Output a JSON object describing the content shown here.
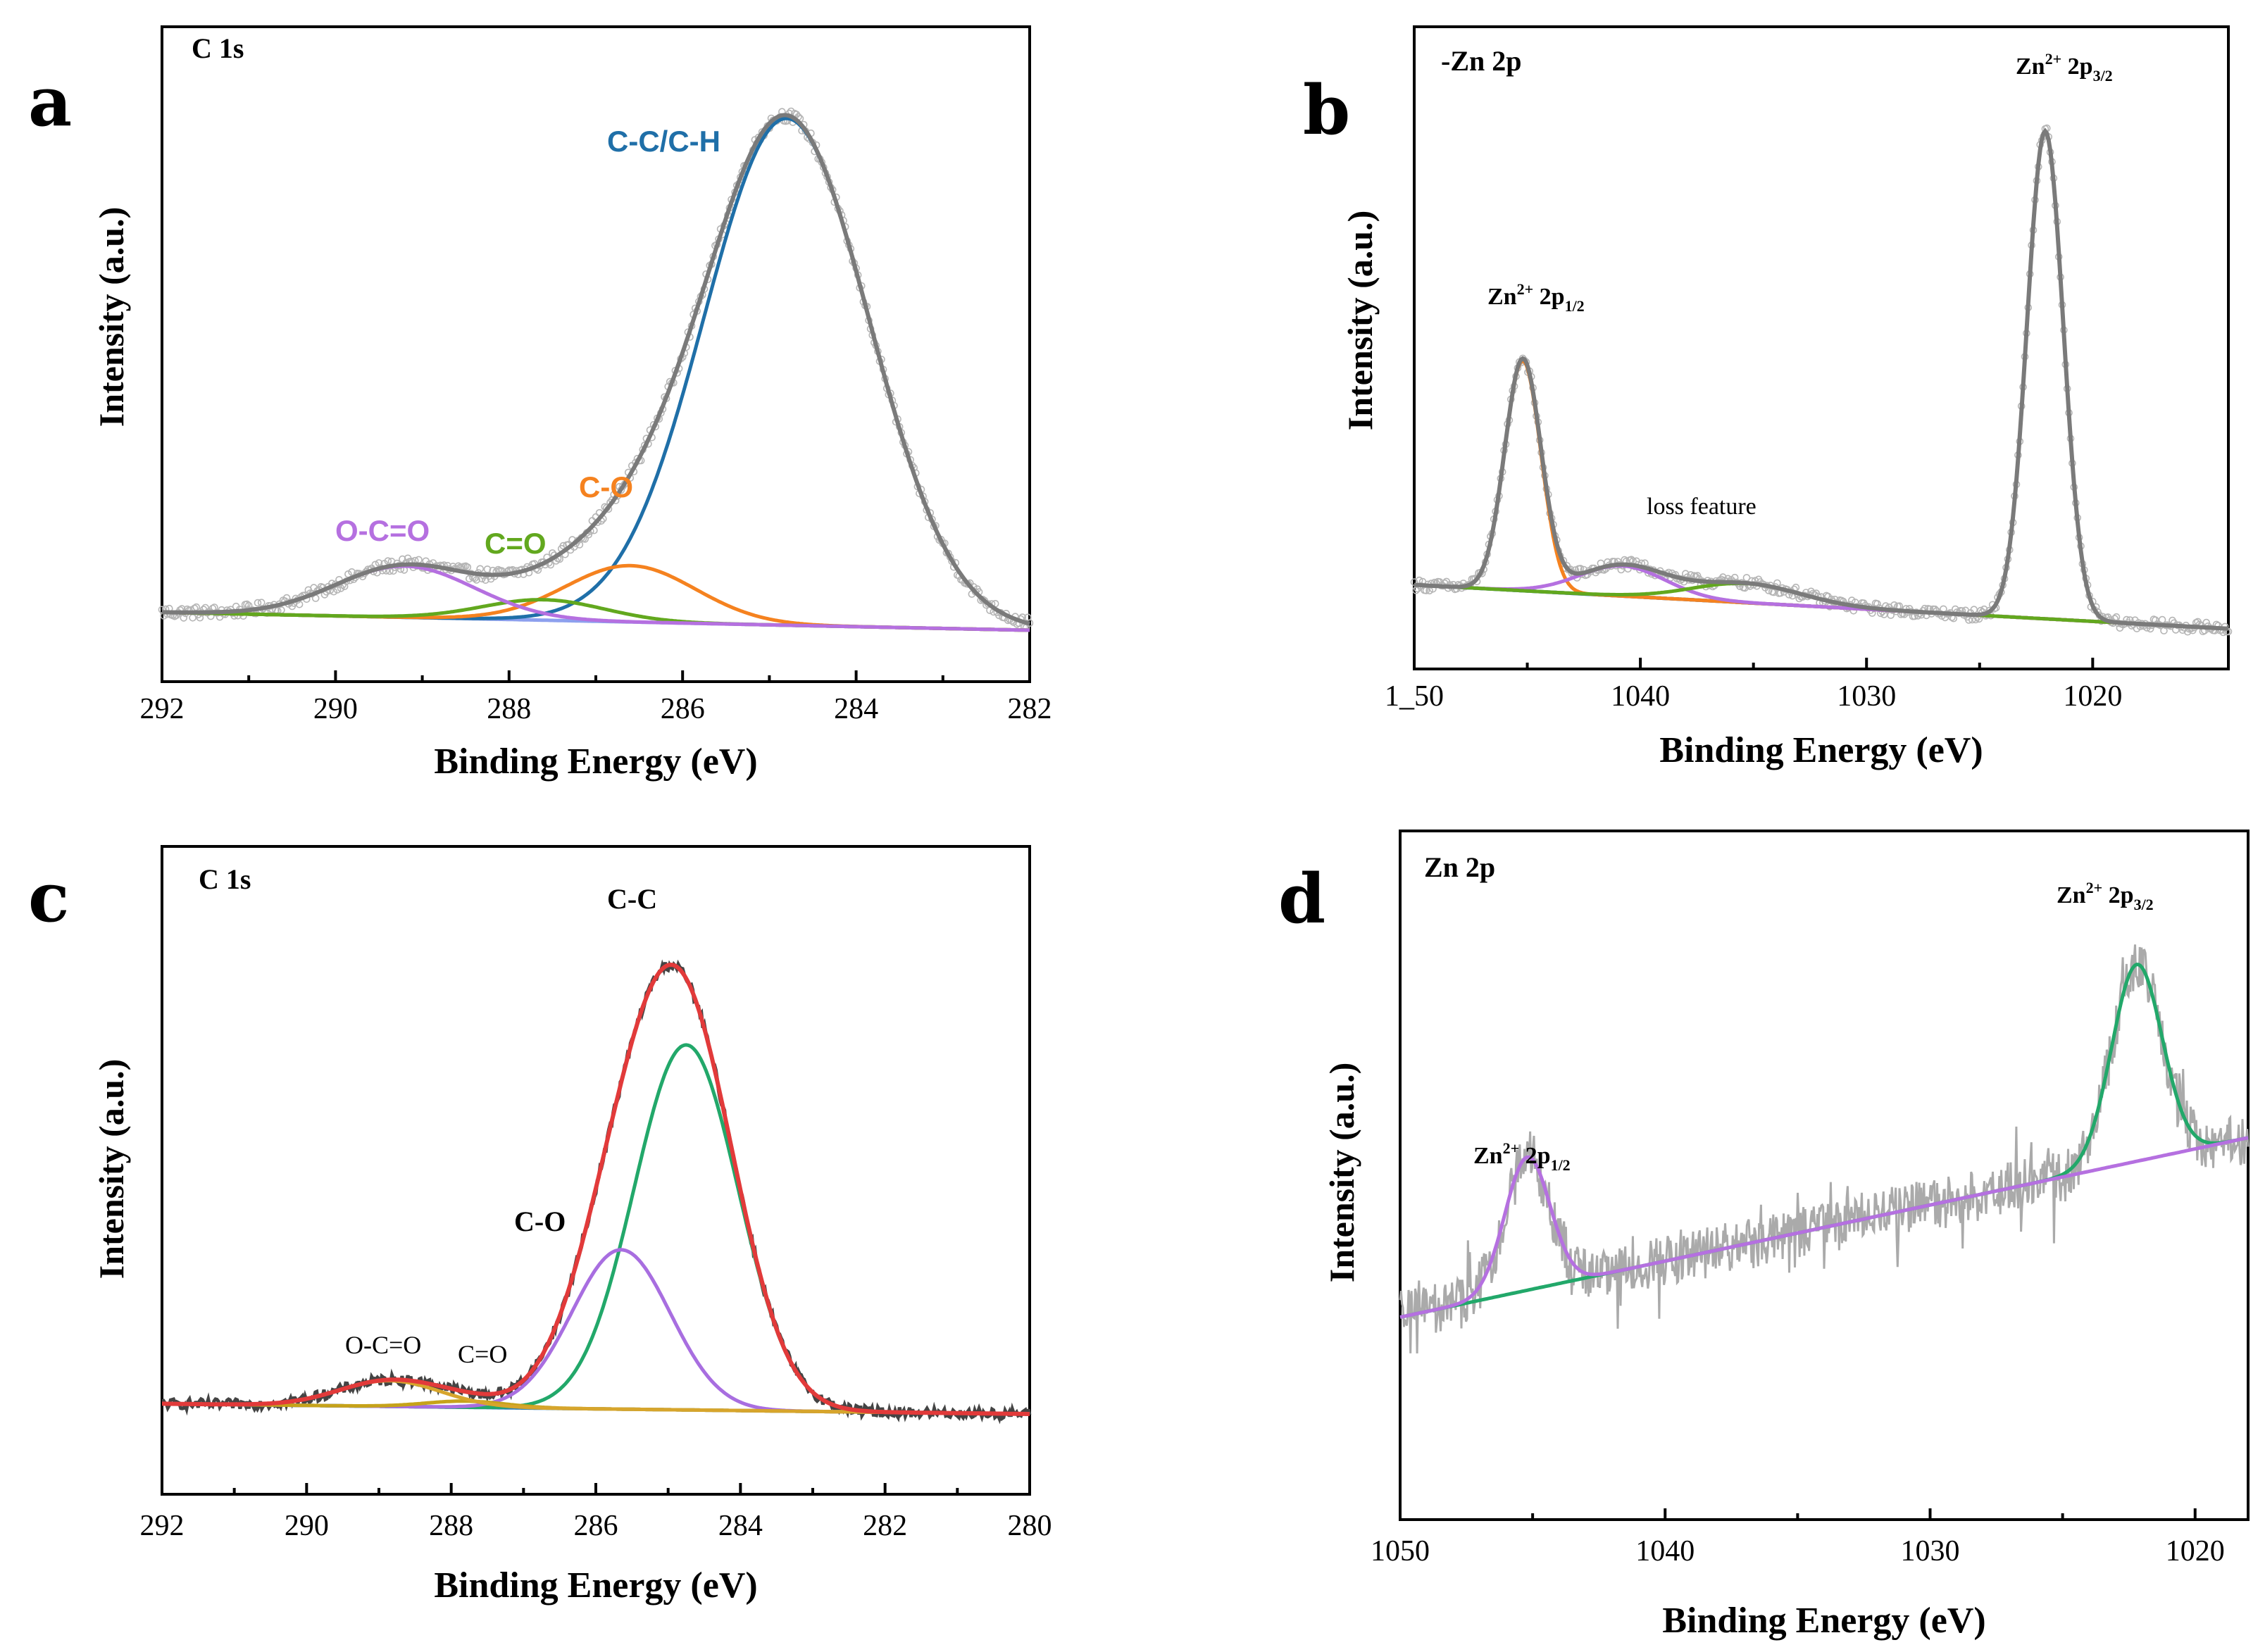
{
  "chart_data": [
    {
      "panel": "a",
      "type": "line",
      "title": "C 1s",
      "xlabel": "Binding Energy (eV)",
      "ylabel": "Intensity (a.u.)",
      "xlim": [
        292,
        282
      ],
      "ylim": [
        0,
        1
      ],
      "xticks": [
        292,
        290,
        288,
        286,
        284,
        282
      ],
      "background": {
        "start": 0.035,
        "end": 0.0
      },
      "raw_noise": 0.012,
      "series": [
        {
          "name": "C-C/C-H",
          "color": "#1f6fa8",
          "center": 284.8,
          "height": 0.99,
          "sigma": 0.95
        },
        {
          "name": "C-O",
          "color": "#f5821f",
          "center": 286.6,
          "height": 0.11,
          "sigma": 0.75
        },
        {
          "name": "C=O",
          "color": "#62a81e",
          "center": 287.6,
          "height": 0.04,
          "sigma": 0.7
        },
        {
          "name": "O-C=O",
          "color": "#b570e0",
          "center": 289.2,
          "height": 0.1,
          "sigma": 0.8
        }
      ],
      "envelope_color": "#7a7a7a",
      "background_color": "#8da0ee",
      "annotations": [
        {
          "text": "C-C/C-H",
          "color": "#1f6fa8"
        },
        {
          "text": "C-O",
          "color": "#f5821f"
        },
        {
          "text": "C=O",
          "color": "#62a81e"
        },
        {
          "text": "O-C=O",
          "color": "#b570e0"
        }
      ]
    },
    {
      "panel": "b",
      "type": "line",
      "title": "-Zn 2p",
      "xlabel": "Binding Energy (eV)",
      "ylabel": "Intensity (a.u.)",
      "xlim": [
        1050,
        1014
      ],
      "ylim": [
        0,
        1
      ],
      "xticks": [
        1050,
        1040,
        1030,
        1020
      ],
      "xtick_labels": [
        "1_50",
        "1040",
        "1030",
        "1020"
      ],
      "background": {
        "start": 0.115,
        "end": 0.035
      },
      "raw_noise": 0.01,
      "series": [
        {
          "name": "Zn2+ 2p3/2",
          "color": "#1f6fa8",
          "center": 1022.1,
          "height": 0.89,
          "sigma": 0.8
        },
        {
          "name": "Zn2+ 2p1/2",
          "color": "#f5821f",
          "center": 1045.2,
          "height": 0.42,
          "sigma": 0.8
        },
        {
          "name": "loss feature 1",
          "color": "#b570e0",
          "center": 1040.8,
          "height": 0.055,
          "sigma": 1.9
        },
        {
          "name": "loss feature 2",
          "color": "#62a81e",
          "center": 1035.3,
          "height": 0.035,
          "sigma": 2.4
        }
      ],
      "envelope_color": "#7a7a7a",
      "background_color": "#8da0ee",
      "annotations": [
        {
          "text": "Zn",
          "sup": "2+",
          "text2": " 2p",
          "sub": "3/2"
        },
        {
          "text": "Zn",
          "sup": "2+",
          "text2": " 2p",
          "sub": "1/2"
        },
        {
          "text": "loss feature"
        }
      ]
    },
    {
      "panel": "c",
      "type": "line",
      "title": "C 1s",
      "xlabel": "Binding Energy (eV)",
      "ylabel": "Intensity (a.u.)",
      "xlim": [
        292,
        280
      ],
      "ylim": [
        0,
        1
      ],
      "xticks": [
        292,
        290,
        288,
        286,
        284,
        282,
        280
      ],
      "background": {
        "start": 0.02,
        "end": 0.0
      },
      "raw_noise": 0.01,
      "series": [
        {
          "name": "C-C",
          "color": "#22a86a",
          "center": 284.75,
          "height": 0.71,
          "sigma": 0.72
        },
        {
          "name": "C-O",
          "color": "#a86ee0",
          "center": 285.65,
          "height": 0.31,
          "sigma": 0.68
        },
        {
          "name": "C=O",
          "color": "#c6a31a",
          "center": 287.8,
          "height": 0.012,
          "sigma": 0.55
        },
        {
          "name": "O-C=O",
          "color": "#d7a52c",
          "center": 288.85,
          "height": 0.05,
          "sigma": 0.7
        }
      ],
      "envelope_color": "#e23a3a",
      "raw_color": "#444444",
      "background_color": "#2d7fb8",
      "annotations": [
        {
          "text": "C-C"
        },
        {
          "text": "C-O"
        },
        {
          "text": "O-C=O"
        },
        {
          "text": "C=O"
        }
      ]
    },
    {
      "panel": "d",
      "type": "line",
      "title": "Zn 2p",
      "xlabel": "Binding Energy (eV)",
      "ylabel": "Intensity (a.u.)",
      "xlim": [
        1050,
        1018
      ],
      "ylim": [
        0,
        1
      ],
      "xticks": [
        1050,
        1040,
        1030,
        1020
      ],
      "background": {
        "start": 0.16,
        "end": 0.47
      },
      "raw_noise": 0.045,
      "series": [
        {
          "name": "Zn2+ 2p3/2",
          "color": "#22a86a",
          "center": 1022.2,
          "height": 0.34,
          "sigma": 0.95
        },
        {
          "name": "Zn2+ 2p1/2",
          "color": "#b570e0",
          "center": 1045.2,
          "height": 0.23,
          "sigma": 0.85
        }
      ],
      "raw_color": "#aaaaaa",
      "annotations": [
        {
          "text": "Zn",
          "sup": "2+",
          "text2": "  2p",
          "sub": "3/2"
        },
        {
          "text": "Zn",
          "sup": "2+",
          "text2": "  2p",
          "sub": "1/2"
        }
      ]
    }
  ]
}
